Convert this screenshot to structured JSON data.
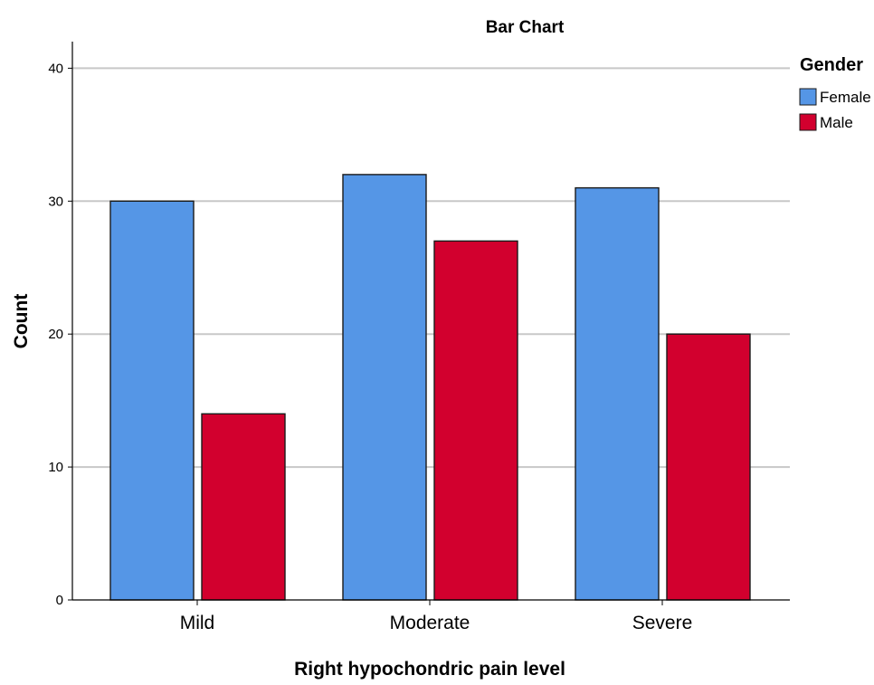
{
  "chart_data": {
    "type": "bar",
    "title": "Bar Chart",
    "xlabel": "Right hypochondric pain level",
    "ylabel": "Count",
    "categories": [
      "Mild",
      "Moderate",
      "Severe"
    ],
    "series": [
      {
        "name": "Female",
        "values": [
          30,
          32,
          31
        ],
        "color": "#5596E6"
      },
      {
        "name": "Male",
        "values": [
          14,
          27,
          20
        ],
        "color": "#D2002E"
      }
    ],
    "ylim": [
      0,
      42
    ],
    "yticks": [
      0,
      10,
      20,
      30,
      40
    ],
    "grid": true,
    "legend": {
      "title": "Gender",
      "placement": "top-right"
    }
  }
}
